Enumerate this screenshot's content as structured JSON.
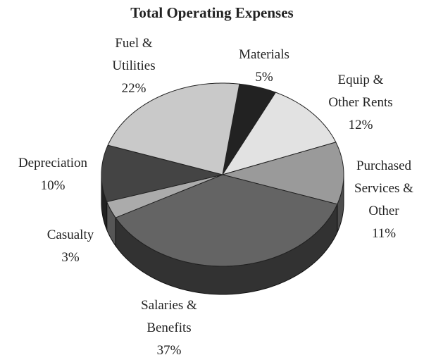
{
  "chart_data": {
    "type": "pie",
    "three_d": true,
    "title": "Total Operating Expenses",
    "categories": [
      "Materials",
      "Equip & Other Rents",
      "Purchased Services & Other",
      "Salaries & Benefits",
      "Casualty",
      "Depreciation",
      "Fuel & Utilities"
    ],
    "values": [
      5,
      12,
      11,
      37,
      3,
      10,
      22
    ],
    "value_labels": [
      "5%",
      "12%",
      "11%",
      "37%",
      "3%",
      "10%",
      "22%"
    ],
    "colors": [
      "#222222",
      "#e2e2e2",
      "#9a9a9a",
      "#646464",
      "#ababab",
      "#444444",
      "#c9c9c9"
    ]
  }
}
